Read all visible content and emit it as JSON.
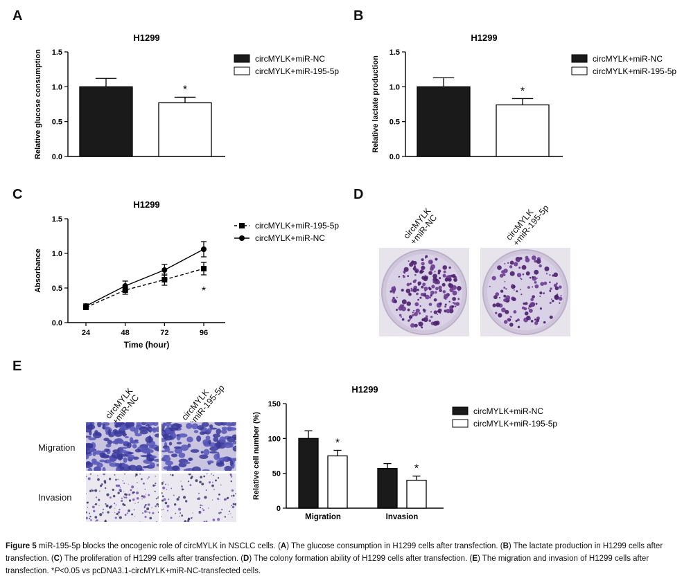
{
  "panels": {
    "a": "A",
    "b": "B",
    "c": "C",
    "d": "D",
    "e": "E"
  },
  "chart_data": [
    {
      "id": "A",
      "type": "bar",
      "title": "H1299",
      "xlabel": "",
      "ylabel": "Relative glucose consumption",
      "ylim": [
        0,
        1.5
      ],
      "yticks": [
        "0.0",
        "0.5",
        "1.0",
        "1.5"
      ],
      "categories": [
        ""
      ],
      "series": [
        {
          "name": "circMYLK+miR-NC",
          "values": [
            1.0
          ],
          "errors": [
            0.12
          ],
          "fill": "#1a1a1a"
        },
        {
          "name": "circMYLK+miR-195-5p",
          "values": [
            0.77
          ],
          "errors": [
            0.08
          ],
          "fill": "#ffffff"
        }
      ],
      "annotations": [
        "*"
      ],
      "legend": "right"
    },
    {
      "id": "B",
      "type": "bar",
      "title": "H1299",
      "xlabel": "",
      "ylabel": "Relative lactate production",
      "ylim": [
        0,
        1.5
      ],
      "yticks": [
        "0.0",
        "0.5",
        "1.0",
        "1.5"
      ],
      "categories": [
        ""
      ],
      "series": [
        {
          "name": "circMYLK+miR-NC",
          "values": [
            1.0
          ],
          "errors": [
            0.13
          ],
          "fill": "#1a1a1a"
        },
        {
          "name": "circMYLK+miR-195-5p",
          "values": [
            0.74
          ],
          "errors": [
            0.09
          ],
          "fill": "#ffffff"
        }
      ],
      "annotations": [
        "*"
      ],
      "legend": "right"
    },
    {
      "id": "C",
      "type": "line",
      "title": "H1299",
      "xlabel": "Time (hour)",
      "ylabel": "Absorbance",
      "ylim": [
        0,
        1.5
      ],
      "yticks": [
        "0.0",
        "0.5",
        "1.0",
        "1.5"
      ],
      "x": [
        24,
        48,
        72,
        96
      ],
      "xticks": [
        "24",
        "48",
        "72",
        "96"
      ],
      "series": [
        {
          "name": "circMYLK+miR-195-5p",
          "values": [
            0.22,
            0.47,
            0.62,
            0.78
          ],
          "errors": [
            0.03,
            0.06,
            0.08,
            0.09
          ],
          "marker": "square",
          "dash": true
        },
        {
          "name": "circMYLK+miR-NC",
          "values": [
            0.24,
            0.53,
            0.76,
            1.06
          ],
          "errors": [
            0.03,
            0.07,
            0.08,
            0.11
          ],
          "marker": "circle",
          "dash": false
        }
      ],
      "annotations": [
        "*"
      ],
      "legend": "right"
    },
    {
      "id": "E",
      "type": "bar",
      "title": "H1299",
      "xlabel": "",
      "ylabel": "Relative cell number (%)",
      "ylim": [
        0,
        150
      ],
      "yticks": [
        "0",
        "50",
        "100",
        "150"
      ],
      "categories": [
        "Migration",
        "Invasion"
      ],
      "series": [
        {
          "name": "circMYLK+miR-NC",
          "values": [
            100,
            57
          ],
          "errors": [
            11,
            7
          ],
          "fill": "#1a1a1a"
        },
        {
          "name": "circMYLK+miR-195-5p",
          "values": [
            75,
            40
          ],
          "errors": [
            8,
            6
          ],
          "fill": "#ffffff"
        }
      ],
      "annotations": [
        "*",
        "*"
      ],
      "legend": "right"
    }
  ],
  "panel_d": {
    "label1": "circMYLK\n+miR-NC",
    "label2": "circMYLK\n+miR-195-5p"
  },
  "panel_e": {
    "label1": "circMYLK\n+miR-NC",
    "label2": "circMYLK\n+miR-195-5p",
    "row1": "Migration",
    "row2": "Invasion"
  },
  "caption": {
    "fig": "Figure 5",
    "p1": " miR-195-5p blocks the oncogenic role of circMYLK in NSCLC cells. (",
    "a": "A",
    "p2": ") The glucose consumption in H1299 cells after transfection. (",
    "b": "B",
    "p3": ") The lactate production in H1299 cells after transfection. (",
    "c": "C",
    "p4": ") The proliferation of H1299 cells after transfection. (",
    "d": "D",
    "p5": ") The colony formation ability of H1299 cells after transfection. (",
    "e": "E",
    "p6": ") The migration and invasion of H1299 cells after transfection. *",
    "pv": "P",
    "p7": "<0.05 vs pcDNA3.1-circMYLK+miR-NC-transfected cells."
  }
}
